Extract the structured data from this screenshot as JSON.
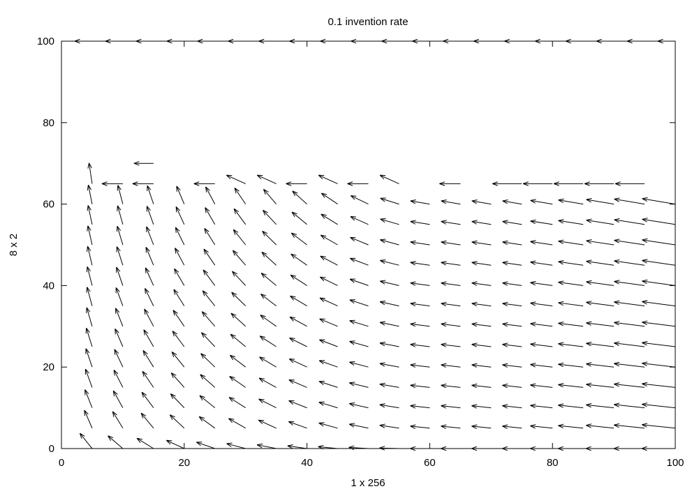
{
  "chart_data": {
    "type": "vector-field",
    "title": "0.1 invention rate",
    "xlabel": "1 x 256",
    "ylabel": "8 x 2",
    "xlim": [
      0,
      100
    ],
    "ylim": [
      0,
      100
    ],
    "xticks": [
      "0",
      "20",
      "40",
      "60",
      "80",
      "100"
    ],
    "yticks": [
      "0",
      "20",
      "40",
      "60",
      "80",
      "100"
    ],
    "grid": false,
    "legend": "none",
    "colors": {
      "arrow": "#000000",
      "axis": "#000000",
      "background": "#ffffff"
    },
    "x_grid": [
      0,
      5,
      10,
      15,
      20,
      25,
      30,
      35,
      40,
      45,
      50,
      55,
      60,
      65,
      70,
      75,
      80,
      85,
      90,
      95,
      100
    ],
    "y_grid": [
      0,
      5,
      10,
      15,
      20,
      25,
      30,
      35,
      40,
      45,
      50,
      55,
      60,
      65,
      70,
      75,
      80,
      85,
      90,
      95,
      100
    ],
    "field_note": "arrow direction at each grid point; rows 65-95 empty except sparse arrows; row 100 points left"
  }
}
